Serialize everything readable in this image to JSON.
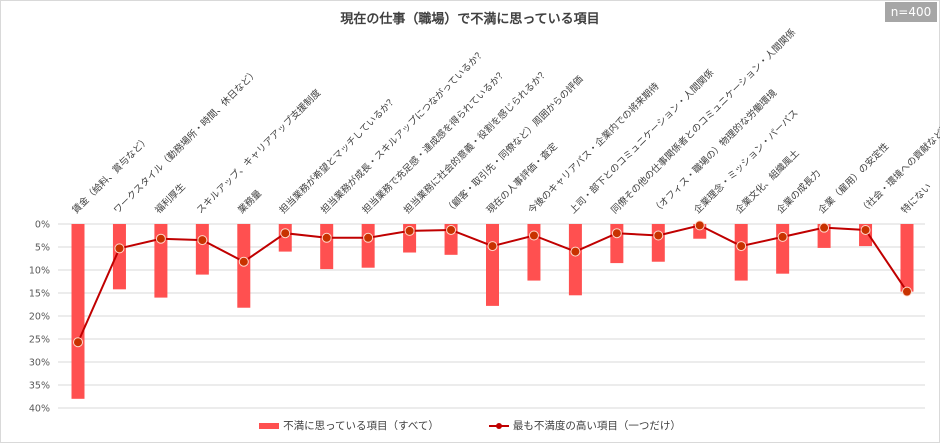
{
  "header": {
    "title": "現在の仕事（職場）で不満に思っている項目",
    "sample_size": "n=400"
  },
  "legend": {
    "bar_label": "不満に思っている項目（すべて）",
    "line_label": "最も不満度の高い項目（一つだけ）"
  },
  "colors": {
    "bar": "#ff5050",
    "line": "#c00000",
    "marker": "#c83200",
    "grid": "#d9d9d9",
    "badge": "#a6a6a6"
  },
  "chart_data": {
    "type": "bar",
    "title": "現在の仕事（職場）で不満に思っている項目",
    "xlabel": "",
    "ylabel": "",
    "ylim": [
      0,
      40
    ],
    "y_inverted": true,
    "y_ticks": [
      "0%",
      "5%",
      "10%",
      "15%",
      "20%",
      "25%",
      "30%",
      "35%",
      "40%"
    ],
    "grid": true,
    "legend_position": "bottom",
    "categories": [
      "賃金（給料、賞与など）",
      "ワークスタイル（勤務場所・時間、休日など）",
      "福利厚生",
      "スキルアップ、キャリアアップ支援制度",
      "業務量",
      "担当業務が希望とマッチしているか？",
      "担当業務が成長・スキルアップにつながっているか？",
      "担当業務で充足感・達成感を得られているか？",
      "担当業務に社会的意義・役割を感じられるか？",
      "（顧客・取引先・同僚など）周囲からの評価",
      "現在の人事評価・査定",
      "今後のキャリアパス・企業内での将来期待",
      "上司・部下とのコミュニケーション・人間関係",
      "同僚その他の仕事関係者とのコミュニケーション・人間関係",
      "（オフィス・職場の）物理的な労働環境",
      "企業理念・ミッション・パーパス",
      "企業文化、組織風土",
      "企業の成長力",
      "企業（雇用）の安定性",
      "（社会・環境への貢献など）",
      "特にない"
    ],
    "series": [
      {
        "name": "不満に思っている項目（すべて）",
        "type": "bar",
        "values": [
          38.0,
          14.2,
          16.0,
          11.0,
          18.2,
          6.0,
          9.8,
          9.5,
          6.2,
          6.7,
          17.8,
          12.3,
          15.5,
          8.5,
          8.2,
          3.2,
          12.3,
          10.8,
          5.2,
          4.8,
          14.7
        ]
      },
      {
        "name": "最も不満度の高い項目（一つだけ）",
        "type": "line",
        "values": [
          25.7,
          5.3,
          3.2,
          3.5,
          8.2,
          2.0,
          3.0,
          3.0,
          1.5,
          1.3,
          4.8,
          2.5,
          6.0,
          2.0,
          2.5,
          0.3,
          4.8,
          2.8,
          0.8,
          1.3,
          14.7
        ]
      }
    ]
  }
}
